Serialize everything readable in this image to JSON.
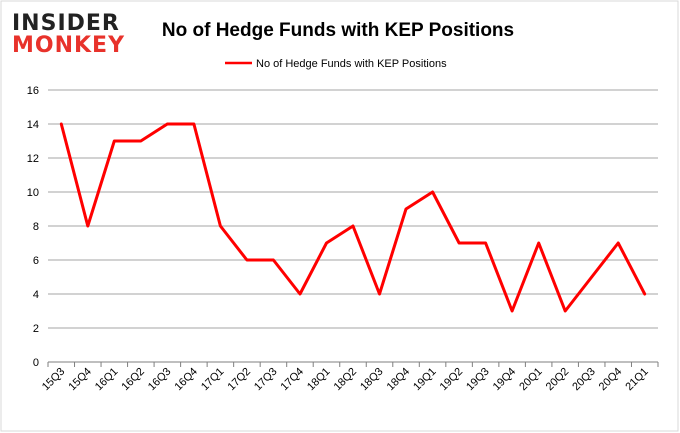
{
  "logo": {
    "line1": "INSIDER",
    "line2": "MONKEY"
  },
  "colors": {
    "series": "#ff0000",
    "grid": "#a6a6a6",
    "axis": "#7f7f7f",
    "logo_red": "#e8322b"
  },
  "chart_data": {
    "type": "line",
    "title": "No of Hedge Funds with KEP Positions",
    "xlabel": "",
    "ylabel": "",
    "ylim": [
      0,
      16
    ],
    "yticks": [
      0,
      2,
      4,
      6,
      8,
      10,
      12,
      14,
      16
    ],
    "legend_position": "top-center",
    "grid": true,
    "categories": [
      "15Q3",
      "15Q4",
      "16Q1",
      "16Q2",
      "16Q3",
      "16Q4",
      "17Q1",
      "17Q2",
      "17Q3",
      "17Q4",
      "18Q1",
      "18Q2",
      "18Q3",
      "18Q4",
      "19Q1",
      "19Q2",
      "19Q3",
      "19Q4",
      "20Q1",
      "20Q2",
      "20Q3",
      "20Q4",
      "21Q1"
    ],
    "series": [
      {
        "name": "No of Hedge Funds with KEP Positions",
        "values": [
          14,
          8,
          13,
          13,
          14,
          14,
          8,
          6,
          6,
          4,
          7,
          8,
          4,
          9,
          10,
          7,
          7,
          3,
          7,
          3,
          5,
          7,
          4
        ]
      }
    ]
  }
}
